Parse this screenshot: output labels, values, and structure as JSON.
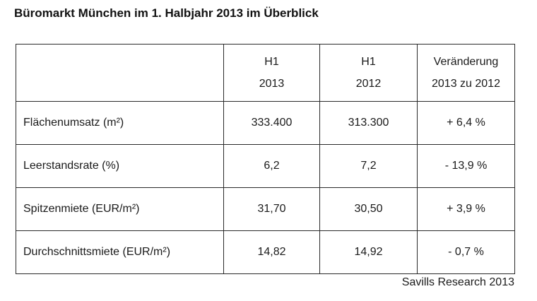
{
  "title": "Büromarkt München im 1. Halbjahr 2013 im Überblick",
  "table": {
    "headers": [
      {
        "line1": "",
        "line2": ""
      },
      {
        "line1": "H1",
        "line2": "2013"
      },
      {
        "line1": "H1",
        "line2": "2012"
      },
      {
        "line1": "Veränderung",
        "line2": "2013 zu 2012"
      }
    ],
    "rows": [
      {
        "label": "Flächenumsatz (m²)",
        "h1_2013": "333.400",
        "h1_2012": "313.300",
        "change": "+ 6,4 %"
      },
      {
        "label": "Leerstandsrate (%)",
        "h1_2013": "6,2",
        "h1_2012": "7,2",
        "change": "- 13,9 %"
      },
      {
        "label": "Spitzenmiete (EUR/m²)",
        "h1_2013": "31,70",
        "h1_2012": "30,50",
        "change": "+ 3,9 %"
      },
      {
        "label": "Durchschnittsmiete (EUR/m²)",
        "h1_2013": "14,82",
        "h1_2012": "14,92",
        "change": "- 0,7 %"
      }
    ]
  },
  "source": "Savills Research 2013"
}
